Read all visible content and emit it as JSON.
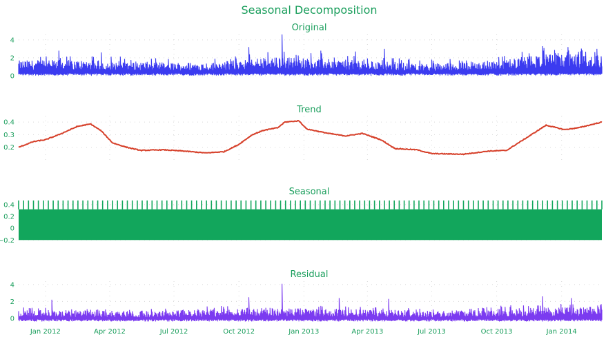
{
  "title": "Seasonal Decomposition",
  "chart_data": {
    "type": "line",
    "title": "Seasonal Decomposition",
    "x_range": [
      "2011-11-24",
      "2014-02-27"
    ],
    "x_ticks": [
      {
        "date": "2012-01-01",
        "label": "Jan 2012"
      },
      {
        "date": "2012-04-01",
        "label": "Apr 2012"
      },
      {
        "date": "2012-07-01",
        "label": "Jul 2012"
      },
      {
        "date": "2012-10-01",
        "label": "Oct 2012"
      },
      {
        "date": "2013-01-01",
        "label": "Jan 2013"
      },
      {
        "date": "2013-04-01",
        "label": "Apr 2013"
      },
      {
        "date": "2013-07-01",
        "label": "Jul 2013"
      },
      {
        "date": "2013-10-01",
        "label": "Oct 2013"
      },
      {
        "date": "2014-01-01",
        "label": "Jan 2014"
      }
    ],
    "grid": true,
    "panels": [
      {
        "name": "Original",
        "color": "#3b3bf0",
        "style": "spiky",
        "ylim": [
          0,
          4.6
        ],
        "yticks": [
          {
            "value": 0,
            "label": "0"
          },
          {
            "value": 2,
            "label": "2"
          },
          {
            "value": 4,
            "label": "4"
          }
        ],
        "baseline": 0.1,
        "envelope": [
          {
            "date": "2011-11-24",
            "value": 1.7
          },
          {
            "date": "2012-01-01",
            "value": 1.8
          },
          {
            "date": "2012-04-01",
            "value": 1.7
          },
          {
            "date": "2012-06-15",
            "value": 1.5
          },
          {
            "date": "2012-09-01",
            "value": 1.5
          },
          {
            "date": "2012-10-15",
            "value": 2.0
          },
          {
            "date": "2012-12-15",
            "value": 2.1
          },
          {
            "date": "2013-03-01",
            "value": 1.8
          },
          {
            "date": "2013-07-01",
            "value": 1.4
          },
          {
            "date": "2013-10-15",
            "value": 1.8
          },
          {
            "date": "2013-12-01",
            "value": 2.4
          },
          {
            "date": "2014-02-27",
            "value": 2.4
          }
        ],
        "spikes": [
          {
            "date": "2012-01-20",
            "value": 2.8
          },
          {
            "date": "2012-03-20",
            "value": 2.6
          },
          {
            "date": "2012-10-15",
            "value": 3.2
          },
          {
            "date": "2012-12-01",
            "value": 4.6
          },
          {
            "date": "2013-01-25",
            "value": 2.8
          },
          {
            "date": "2013-03-15",
            "value": 2.7
          },
          {
            "date": "2013-04-25",
            "value": 3.0
          },
          {
            "date": "2013-12-05",
            "value": 3.3
          },
          {
            "date": "2014-01-10",
            "value": 3.2
          },
          {
            "date": "2014-02-20",
            "value": 3.0
          }
        ]
      },
      {
        "name": "Trend",
        "color": "#d6402a",
        "style": "line",
        "ylim": [
          0.1,
          0.45
        ],
        "yticks": [
          {
            "value": 0.2,
            "label": "0.2"
          },
          {
            "value": 0.3,
            "label": "0.3"
          },
          {
            "value": 0.4,
            "label": "0.4"
          }
        ],
        "points": [
          {
            "date": "2011-11-24",
            "value": 0.2
          },
          {
            "date": "2011-12-15",
            "value": 0.245
          },
          {
            "date": "2012-01-01",
            "value": 0.26
          },
          {
            "date": "2012-01-20",
            "value": 0.3
          },
          {
            "date": "2012-02-15",
            "value": 0.365
          },
          {
            "date": "2012-03-05",
            "value": 0.385
          },
          {
            "date": "2012-03-20",
            "value": 0.33
          },
          {
            "date": "2012-04-05",
            "value": 0.235
          },
          {
            "date": "2012-04-25",
            "value": 0.2
          },
          {
            "date": "2012-05-15",
            "value": 0.175
          },
          {
            "date": "2012-06-15",
            "value": 0.18
          },
          {
            "date": "2012-07-15",
            "value": 0.17
          },
          {
            "date": "2012-08-15",
            "value": 0.155
          },
          {
            "date": "2012-09-10",
            "value": 0.165
          },
          {
            "date": "2012-09-30",
            "value": 0.22
          },
          {
            "date": "2012-10-20",
            "value": 0.3
          },
          {
            "date": "2012-11-05",
            "value": 0.335
          },
          {
            "date": "2012-11-25",
            "value": 0.355
          },
          {
            "date": "2012-12-05",
            "value": 0.4
          },
          {
            "date": "2012-12-25",
            "value": 0.41
          },
          {
            "date": "2013-01-05",
            "value": 0.345
          },
          {
            "date": "2013-02-05",
            "value": 0.31
          },
          {
            "date": "2013-03-01",
            "value": 0.29
          },
          {
            "date": "2013-03-25",
            "value": 0.31
          },
          {
            "date": "2013-04-20",
            "value": 0.26
          },
          {
            "date": "2013-05-10",
            "value": 0.19
          },
          {
            "date": "2013-06-10",
            "value": 0.18
          },
          {
            "date": "2013-07-01",
            "value": 0.15
          },
          {
            "date": "2013-08-15",
            "value": 0.145
          },
          {
            "date": "2013-09-20",
            "value": 0.17
          },
          {
            "date": "2013-10-15",
            "value": 0.175
          },
          {
            "date": "2013-11-15",
            "value": 0.285
          },
          {
            "date": "2013-12-10",
            "value": 0.375
          },
          {
            "date": "2014-01-05",
            "value": 0.34
          },
          {
            "date": "2014-01-25",
            "value": 0.355
          },
          {
            "date": "2014-02-27",
            "value": 0.4
          }
        ]
      },
      {
        "name": "Seasonal",
        "color": "#12a65c",
        "style": "band",
        "ylim": [
          -0.22,
          0.48
        ],
        "yticks": [
          {
            "value": -0.2,
            "label": "−0.2"
          },
          {
            "value": 0,
            "label": "0"
          },
          {
            "value": 0.2,
            "label": "0.2"
          },
          {
            "value": 0.4,
            "label": "0.4"
          }
        ],
        "min": -0.2,
        "max": 0.47,
        "typical_max": 0.32,
        "period_days": 7
      },
      {
        "name": "Residual",
        "color": "#7b3bf0",
        "style": "spiky",
        "ylim": [
          -0.5,
          4.4
        ],
        "yticks": [
          {
            "value": 0,
            "label": "0"
          },
          {
            "value": 2,
            "label": "2"
          },
          {
            "value": 4,
            "label": "4"
          }
        ],
        "baseline": -0.3,
        "envelope": [
          {
            "date": "2011-11-24",
            "value": 1.0
          },
          {
            "date": "2012-06-01",
            "value": 0.9
          },
          {
            "date": "2012-10-15",
            "value": 1.3
          },
          {
            "date": "2013-03-01",
            "value": 1.1
          },
          {
            "date": "2013-07-01",
            "value": 0.9
          },
          {
            "date": "2013-12-01",
            "value": 1.3
          },
          {
            "date": "2014-02-27",
            "value": 1.4
          }
        ],
        "spikes": [
          {
            "date": "2012-01-10",
            "value": 2.2
          },
          {
            "date": "2012-10-15",
            "value": 2.5
          },
          {
            "date": "2012-12-01",
            "value": 4.1
          },
          {
            "date": "2013-02-20",
            "value": 2.4
          },
          {
            "date": "2013-05-01",
            "value": 2.3
          },
          {
            "date": "2013-12-05",
            "value": 2.6
          },
          {
            "date": "2014-01-15",
            "value": 2.4
          }
        ]
      }
    ]
  }
}
